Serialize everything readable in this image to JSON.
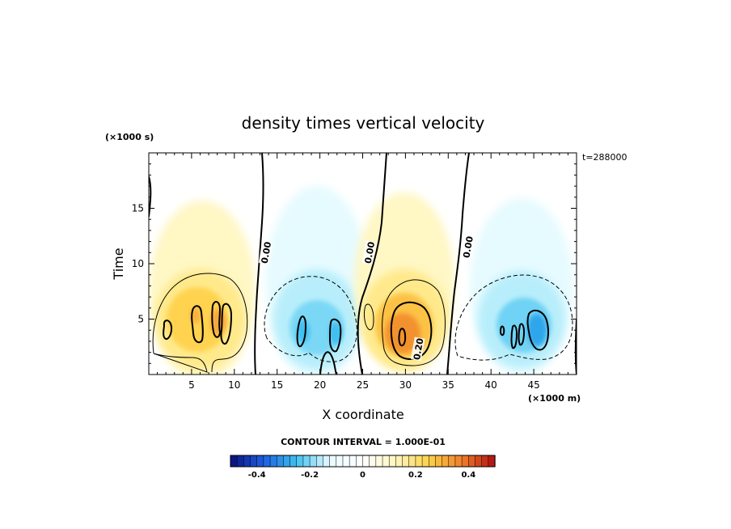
{
  "chart_data": {
    "type": "heatmap",
    "title": "density times vertical velocity",
    "xlabel": "X coordinate",
    "ylabel": "Time",
    "x_scale_label": "(×1000 m)",
    "y_scale_label": "(×1000 s)",
    "xlim": [
      0,
      50
    ],
    "ylim": [
      0,
      20
    ],
    "x_ticks": [
      5,
      10,
      15,
      20,
      25,
      30,
      35,
      40,
      45
    ],
    "y_ticks": [
      5,
      10,
      15
    ],
    "timestamp": "t=288000",
    "contour_interval_text": "CONTOUR INTERVAL = 1.000E-01",
    "contour_interval": 0.1,
    "contour_labels": [
      {
        "text": "0.00",
        "x": 13.7,
        "y": 11.0
      },
      {
        "text": "0.00",
        "x": 25.8,
        "y": 11.0
      },
      {
        "text": "0.00",
        "x": 37.3,
        "y": 11.5
      },
      {
        "text": "0.20",
        "x": 31.5,
        "y": 2.3
      }
    ],
    "colorbar": {
      "range": [
        -0.5,
        0.5
      ],
      "ticks": [
        -0.4,
        -0.2,
        0,
        0.2,
        0.4
      ],
      "tick_labels": [
        "-0.4",
        "-0.2",
        "0",
        "0.2",
        "0.4"
      ],
      "colors": [
        "#0a0f7a",
        "#1e5fe0",
        "#3fc0f0",
        "#e9fbff",
        "#ffffff",
        "#fff6c0",
        "#fbd24a",
        "#f0802a",
        "#b01010"
      ]
    },
    "features": [
      {
        "kind": "max",
        "x": 6.5,
        "y": 5.0,
        "peak": 0.15
      },
      {
        "kind": "max",
        "x": 30.0,
        "y": 4.0,
        "peak": 0.3
      },
      {
        "kind": "min",
        "x": 20.0,
        "y": 5.0,
        "peak": -0.15
      },
      {
        "kind": "min",
        "x": 44.5,
        "y": 4.5,
        "peak": -0.25
      }
    ]
  }
}
